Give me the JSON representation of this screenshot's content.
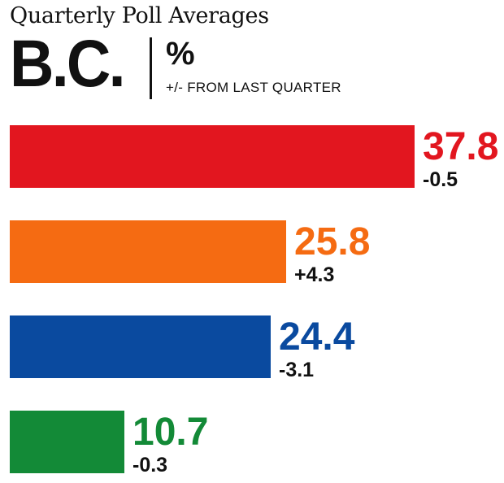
{
  "header": {
    "title": "Quarterly Poll Averages",
    "region": "B.C.",
    "unit": "%",
    "subtitle": "+/- FROM LAST QUARTER"
  },
  "chart_data": {
    "type": "bar",
    "orientation": "horizontal",
    "title": "Quarterly Poll Averages",
    "values": [
      37.8,
      25.8,
      24.4,
      10.7
    ],
    "changes": [
      "-0.5",
      "+4.3",
      "-3.1",
      "-0.3"
    ],
    "colors": [
      "#e2161f",
      "#f56b12",
      "#0a4a9f",
      "#138a37"
    ],
    "xlim": [
      0,
      37.8
    ],
    "grid": false,
    "legend": "none"
  }
}
